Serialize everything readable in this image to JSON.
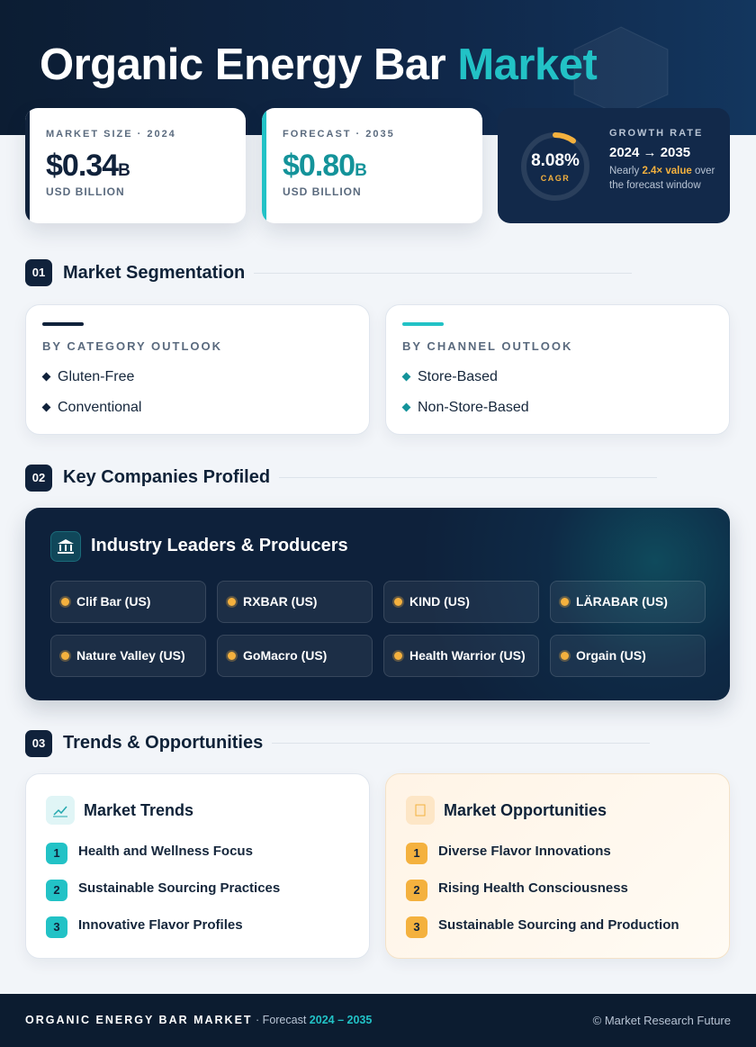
{
  "header": {
    "title_main": "Organic Energy Bar",
    "title_highlight": "Market"
  },
  "kpis": [
    {
      "label": "MARKET SIZE · 2024",
      "value": "$0.34",
      "unit": "B",
      "sub": "USD BILLION"
    },
    {
      "label": "FORECAST · 2035",
      "value": "$0.80",
      "unit": "B",
      "sub": "USD BILLION"
    }
  ],
  "growth": {
    "ring_value": "8.08%",
    "ring_label": "CAGR",
    "label": "GROWTH RATE",
    "period": "2024 → 2035",
    "note_pre": "Nearly",
    "note_highlight": "2.4× value",
    "note_post": "over the forecast window"
  },
  "sections": [
    {
      "number": "01",
      "title": "Market Segmentation"
    },
    {
      "number": "02",
      "title": "Key Companies Profiled"
    },
    {
      "number": "03",
      "title": "Trends & Opportunities"
    }
  ],
  "segmentation": [
    {
      "title": "BY CATEGORY OUTLOOK",
      "items": [
        "Gluten-Free",
        "Conventional"
      ]
    },
    {
      "title": "BY CHANNEL OUTLOOK",
      "items": [
        "Store-Based",
        "Non-Store-Based"
      ]
    }
  ],
  "companies": {
    "title": "Industry Leaders & Producers",
    "items": [
      "Clif Bar (US)",
      "RXBAR (US)",
      "KIND (US)",
      "LÄRABAR (US)",
      "Nature Valley (US)",
      "GoMacro (US)",
      "Health Warrior (US)",
      "Orgain (US)"
    ]
  },
  "trends": {
    "title": "Market Trends",
    "items": [
      {
        "no": "1",
        "text": "Health and Wellness Focus"
      },
      {
        "no": "2",
        "text": "Sustainable Sourcing Practices"
      },
      {
        "no": "3",
        "text": "Innovative Flavor Profiles"
      }
    ]
  },
  "opportunities": {
    "title": "Market Opportunities",
    "items": [
      {
        "no": "1",
        "text": "Diverse Flavor Innovations"
      },
      {
        "no": "2",
        "text": "Rising Health Consciousness"
      },
      {
        "no": "3",
        "text": "Sustainable Sourcing and Production"
      }
    ]
  },
  "footer": {
    "brand": "ORGANIC ENERGY BAR MARKET",
    "forecast_label": "· Forecast",
    "forecast_period": "2024 – 2035",
    "credit": "© Market Research Future"
  }
}
